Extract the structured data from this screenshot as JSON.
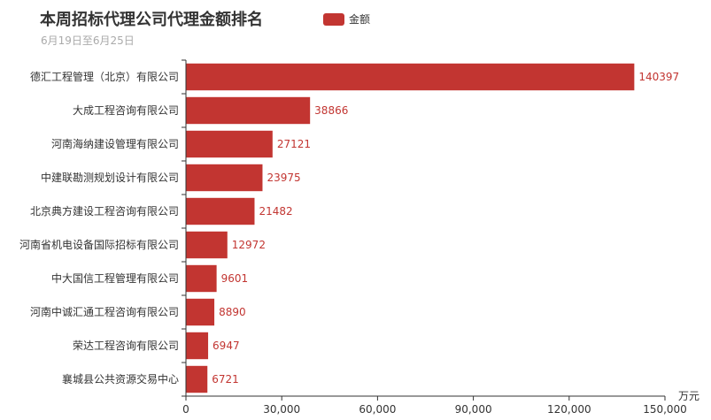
{
  "title": "本周招标代理公司代理金额排名",
  "subtitle": "6月19日至6月25日",
  "legend": {
    "label": "金额",
    "color": "#c23531"
  },
  "chart_data": {
    "type": "bar",
    "orientation": "horizontal",
    "categories": [
      "德汇工程管理（北京）有限公司",
      "大成工程咨询有限公司",
      "河南海纳建设管理有限公司",
      "中建联勘测规划设计有限公司",
      "北京典方建设工程咨询有限公司",
      "河南省机电设备国际招标有限公司",
      "中大国信工程管理有限公司",
      "河南中诚汇通工程咨询有限公司",
      "荣达工程咨询有限公司",
      "襄城县公共资源交易中心"
    ],
    "series": [
      {
        "name": "金额",
        "values": [
          140397,
          38866,
          27121,
          23975,
          21482,
          12972,
          9601,
          8890,
          6947,
          6721
        ]
      }
    ],
    "value_labels": [
      "140397",
      "38866",
      "27121",
      "23975",
      "21482",
      "12972",
      "9601",
      "8890",
      "6947",
      "6721"
    ],
    "xlim": [
      0,
      150000
    ],
    "xticks": [
      0,
      30000,
      60000,
      90000,
      120000,
      150000
    ],
    "xtick_labels": [
      "0",
      "30,000",
      "60,000",
      "90,000",
      "120,000",
      "150,000"
    ],
    "xlabel": "万元",
    "ylabel": "",
    "grid": false,
    "legend_position": "top",
    "bar_color": "#c23531",
    "label_color": "#c23531",
    "axis_color": "#333333"
  }
}
